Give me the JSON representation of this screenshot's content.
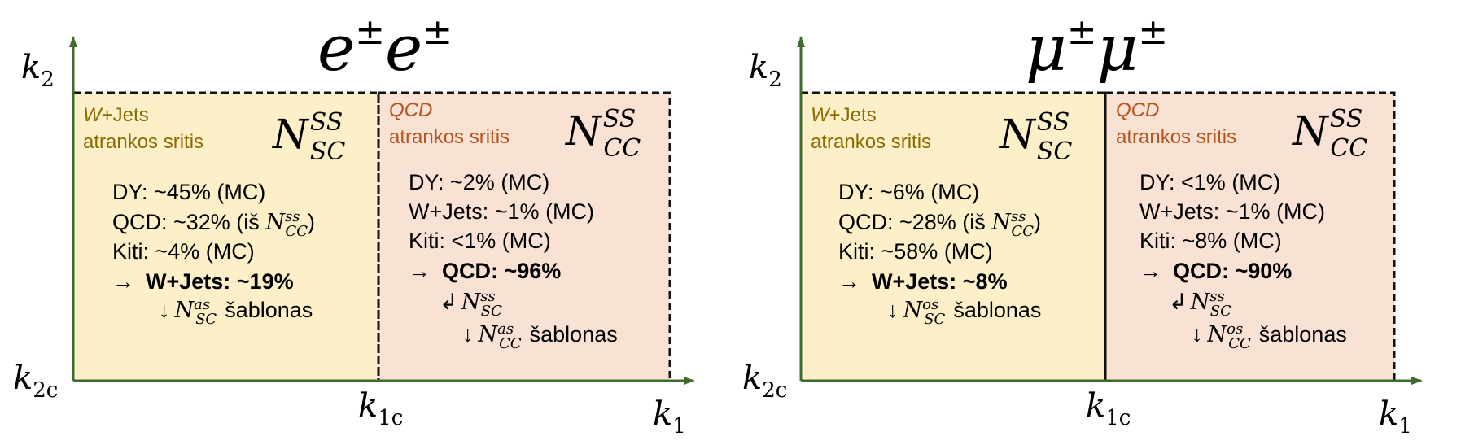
{
  "colors": {
    "axis": "#3f6b2f",
    "wjets_fill": "#fdefc7",
    "qcd_fill": "#f9e1d3",
    "wjets_text": "#8c6a00",
    "qcd_text": "#b5531c",
    "region_border": "#111111"
  },
  "panels": [
    {
      "title_base": "e",
      "title_sup": "±",
      "axes": {
        "y_label": "k",
        "y_sub": "2",
        "yc_label": "k",
        "yc_sub": "2c",
        "xc_label": "k",
        "xc_sub": "1c",
        "x_label": "k",
        "x_sub": "1"
      },
      "left_region": {
        "proc_italic": "W",
        "proc_rest": "+Jets",
        "subtitle": "atrankos sritis",
        "n_base": "N",
        "n_sup": "SS",
        "n_sub": "SC",
        "lines": [
          {
            "text": "DY: ~45% (MC)"
          },
          {
            "text": "QCD: ~32% (iš ",
            "math_sup": "ss",
            "math_sub": "CC",
            "tail": ")"
          },
          {
            "text": "Kiti: ~4% (MC)"
          }
        ],
        "result": "W+Jets: ~19%",
        "arrow_right": "→",
        "template_arrow": "↓",
        "template_sup": "as",
        "template_sub": "SC",
        "template_word": "šablonas"
      },
      "right_region": {
        "proc_italic": "QCD",
        "subtitle": "atrankos sritis",
        "n_base": "N",
        "n_sup": "SS",
        "n_sub": "CC",
        "lines": [
          {
            "text": "DY: ~2% (MC)"
          },
          {
            "text": "W+Jets: ~1% (MC)"
          },
          {
            "text": "Kiti: <1% (MC)"
          }
        ],
        "result": "QCD: ~96%",
        "arrow_right": "→",
        "hook_arrow": "↲",
        "hook_sup": "ss",
        "hook_sub": "SC",
        "template_arrow": "↓",
        "template_sup": "as",
        "template_sub": "CC",
        "template_word": "šablonas"
      }
    },
    {
      "title_base": "μ",
      "title_sup": "±",
      "axes": {
        "y_label": "k",
        "y_sub": "2",
        "yc_label": "k",
        "yc_sub": "2c",
        "xc_label": "k",
        "xc_sub": "1c",
        "x_label": "k",
        "x_sub": "1"
      },
      "left_region": {
        "proc_italic": "W",
        "proc_rest": "+Jets",
        "subtitle": "atrankos sritis",
        "n_base": "N",
        "n_sup": "SS",
        "n_sub": "SC",
        "lines": [
          {
            "text": "DY: ~6% (MC)"
          },
          {
            "text": "QCD: ~28% (iš ",
            "math_sup": "ss",
            "math_sub": "CC",
            "tail": ")"
          },
          {
            "text": "Kiti: ~58% (MC)"
          }
        ],
        "result": "W+Jets: ~8%",
        "arrow_right": "→",
        "template_arrow": "↓",
        "template_sup": "os",
        "template_sub": "SC",
        "template_word": "šablonas"
      },
      "right_region": {
        "proc_italic": "QCD",
        "subtitle": "atrankos sritis",
        "n_base": "N",
        "n_sup": "SS",
        "n_sub": "CC",
        "lines": [
          {
            "text": "DY: <1% (MC)"
          },
          {
            "text": "W+Jets: ~1% (MC)"
          },
          {
            "text": "Kiti: ~8% (MC)"
          }
        ],
        "result": "QCD: ~90%",
        "arrow_right": "→",
        "hook_arrow": "↲",
        "hook_sup": "ss",
        "hook_sub": "SC",
        "template_arrow": "↓",
        "template_sup": "os",
        "template_sub": "CC",
        "template_word": "šablonas"
      }
    }
  ]
}
